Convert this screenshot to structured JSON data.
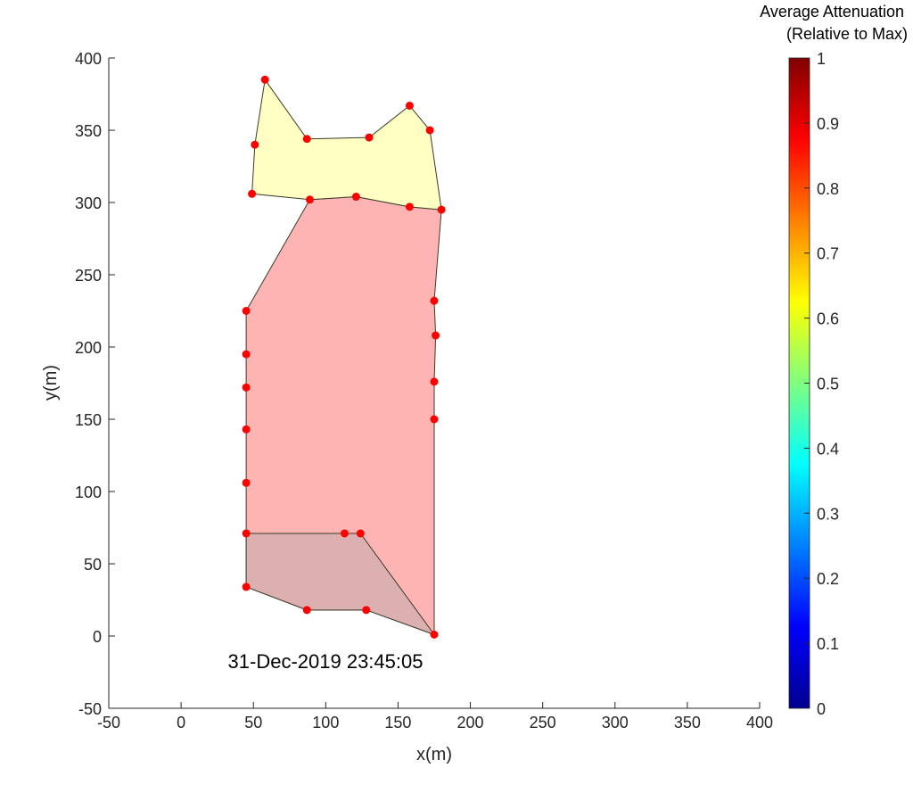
{
  "chart_data": {
    "type": "scatter",
    "subtype": "filled-polygons-with-vertices",
    "title": "",
    "xlabel": "x(m)",
    "ylabel": "y(m)",
    "xlim": [
      -50,
      400
    ],
    "ylim": [
      -50,
      400
    ],
    "xticks": [
      -50,
      0,
      50,
      100,
      150,
      200,
      250,
      300,
      350,
      400
    ],
    "yticks": [
      -50,
      0,
      50,
      100,
      150,
      200,
      250,
      300,
      350,
      400
    ],
    "grid": false,
    "annotation": "31-Dec-2019 23:45:05",
    "annotation_pos": [
      100,
      -18
    ],
    "colorbar": {
      "title_line1": "Average Attenuation",
      "title_line2": "(Relative to Max)",
      "colormap": "jet",
      "range": [
        0,
        1
      ],
      "ticks": [
        0,
        0.1,
        0.2,
        0.3,
        0.4,
        0.5,
        0.6,
        0.7,
        0.8,
        0.9,
        1
      ],
      "tick_labels": [
        "0",
        "0.1",
        "0.2",
        "0.3",
        "0.4",
        "0.5",
        "0.6",
        "0.7",
        "0.8",
        "0.9",
        "1"
      ]
    },
    "polygons": [
      {
        "name": "region-yellow",
        "fill": "#ffffc4",
        "vertices": [
          [
            58,
            385
          ],
          [
            51,
            340
          ],
          [
            49,
            306
          ],
          [
            89,
            302
          ],
          [
            121,
            304
          ],
          [
            158,
            297
          ],
          [
            180,
            295
          ],
          [
            172,
            350
          ],
          [
            158,
            367
          ],
          [
            130,
            345
          ],
          [
            87,
            344
          ]
        ]
      },
      {
        "name": "region-red",
        "fill": "#ffb4b4",
        "vertices": [
          [
            89,
            302
          ],
          [
            121,
            304
          ],
          [
            158,
            297
          ],
          [
            180,
            295
          ],
          [
            175,
            232
          ],
          [
            176,
            208
          ],
          [
            175,
            176
          ],
          [
            175,
            150
          ],
          [
            175,
            1
          ],
          [
            128,
            18
          ],
          [
            87,
            18
          ],
          [
            45,
            34
          ],
          [
            45,
            71
          ],
          [
            45,
            106
          ],
          [
            45,
            143
          ],
          [
            45,
            172
          ],
          [
            45,
            195
          ],
          [
            45,
            225
          ]
        ]
      },
      {
        "name": "region-brown",
        "fill": "#dcb0b0",
        "vertices": [
          [
            45,
            71
          ],
          [
            113,
            71
          ],
          [
            124,
            71
          ],
          [
            175,
            1
          ],
          [
            128,
            18
          ],
          [
            87,
            18
          ],
          [
            45,
            34
          ]
        ]
      }
    ],
    "points": {
      "color": "#ff0000",
      "xy": [
        [
          58,
          385
        ],
        [
          51,
          340
        ],
        [
          49,
          306
        ],
        [
          89,
          302
        ],
        [
          121,
          304
        ],
        [
          158,
          297
        ],
        [
          180,
          295
        ],
        [
          172,
          350
        ],
        [
          158,
          367
        ],
        [
          130,
          345
        ],
        [
          87,
          344
        ],
        [
          175,
          232
        ],
        [
          176,
          208
        ],
        [
          175,
          176
        ],
        [
          175,
          150
        ],
        [
          175,
          1
        ],
        [
          45,
          225
        ],
        [
          45,
          195
        ],
        [
          45,
          172
        ],
        [
          45,
          143
        ],
        [
          45,
          106
        ],
        [
          45,
          71
        ],
        [
          113,
          71
        ],
        [
          124,
          71
        ],
        [
          45,
          34
        ],
        [
          87,
          18
        ],
        [
          128,
          18
        ]
      ]
    }
  }
}
